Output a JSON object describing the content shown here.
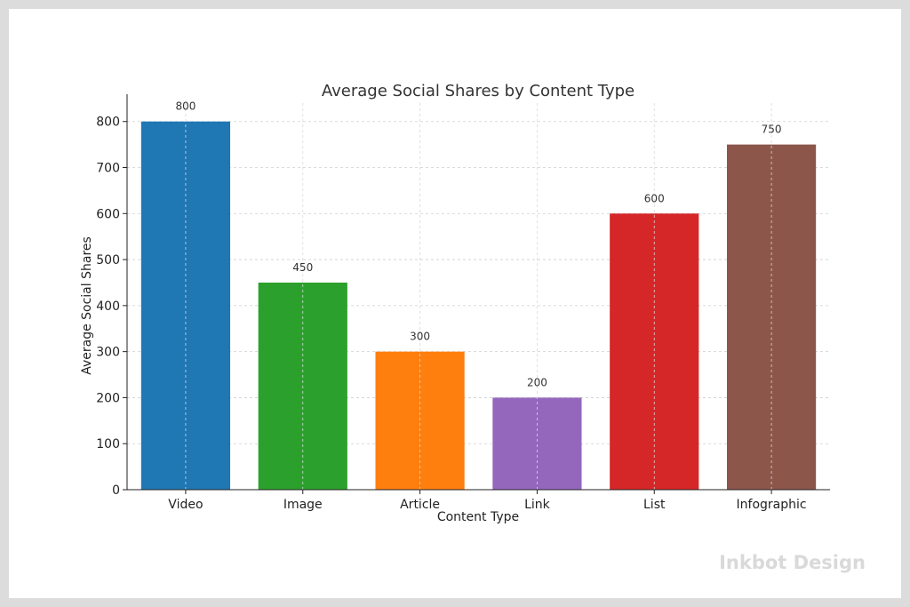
{
  "chart_data": {
    "type": "bar",
    "title": "Average Social Shares by Content Type",
    "xlabel": "Content Type",
    "ylabel": "Average Social Shares",
    "categories": [
      "Video",
      "Image",
      "Article",
      "Link",
      "List",
      "Infographic"
    ],
    "values": [
      800,
      450,
      300,
      200,
      600,
      750
    ],
    "colors": [
      "#1f77b4",
      "#2ca02c",
      "#ff7f0e",
      "#9467bd",
      "#d62728",
      "#8c564b"
    ],
    "ylim": [
      0,
      840
    ],
    "yticks": [
      0,
      100,
      200,
      300,
      400,
      500,
      600,
      700,
      800
    ],
    "grid": true
  },
  "watermark": "Inkbot Design"
}
